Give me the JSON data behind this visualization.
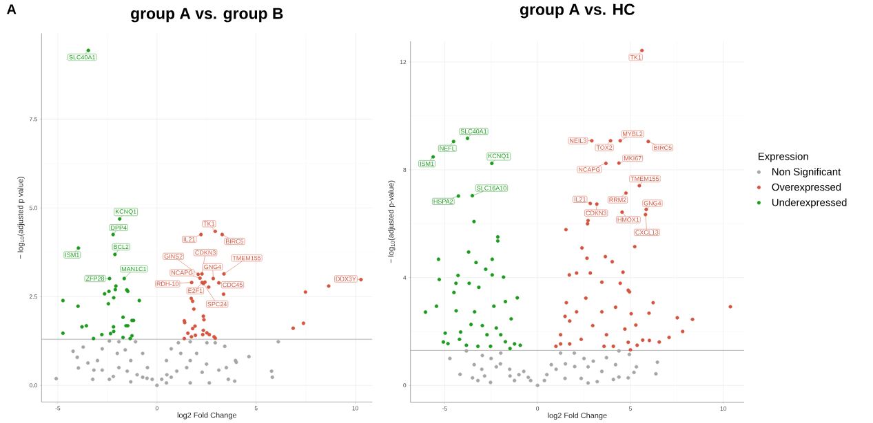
{
  "chart_data": [
    {
      "type": "scatter",
      "title": "group A vs. group B",
      "xlabel": "log2 Fold Change",
      "ylabel": "− log$_{10}$(adjusted p value)",
      "xlim": [
        -5.82,
        10.86
      ],
      "ylim": [
        -0.47,
        9.92
      ],
      "xticks": [
        -5,
        0,
        5,
        10
      ],
      "yticks": [
        {
          "value": 0,
          "label": "0.0"
        },
        2.5,
        {
          "value": 5,
          "label": "5.0"
        },
        7.5
      ],
      "grid": true,
      "legend": false,
      "marker": "circle",
      "ref_lines": [
        {
          "axis": "y",
          "value": 1.3,
          "color": "#a0a0a0"
        }
      ],
      "series": [
        {
          "color": "#a6a6a6",
          "x": [
            -5.08,
            -4.23,
            -4.02,
            -3.96,
            -3.72,
            -3.24,
            -3.18,
            -2.76,
            -2.4,
            -1.92,
            -1.08,
            -0.72,
            -0.48,
            -0.24,
            0,
            0.24,
            0.48,
            0.72,
            1.08,
            1.68,
            2.52,
            2.94,
            3.42,
            3.96,
            4.64,
            6.12,
            5.78,
            5.82,
            3.92,
            3.6,
            2.64,
            1.68,
            0.48,
            -1.32,
            -2.4,
            -2.76,
            -1.92,
            -1.32,
            1.68,
            2.28,
            3.12,
            -0.72,
            0.72,
            -3.48,
            -3.0,
            -1.5,
            -1.0,
            -0.5,
            0.5,
            1.0,
            1.5,
            2.0,
            -2.0,
            -1.6,
            1.2,
            2.5,
            -2.2,
            3.5,
            4.0
          ],
          "values": [
            0.19,
            0.96,
            0.79,
            0.49,
            1.08,
            0.17,
            0.43,
            1.03,
            1.25,
            1.23,
            1.23,
            0.9,
            0.5,
            0.17,
            0,
            0.17,
            0.7,
            1.03,
            1.2,
            1.23,
            1.2,
            1.2,
            1.1,
            0.7,
            0.81,
            1.23,
            0.4,
            0.23,
            0.12,
            0.17,
            0.07,
            0.07,
            0.07,
            0.1,
            0.17,
            0.43,
            0.5,
            0.7,
            0.7,
            0.37,
            0.43,
            0.23,
            0.23,
            0.63,
            0.7,
            0.4,
            0.3,
            0.2,
            0.3,
            0.4,
            0.5,
            0.9,
            0.9,
            1.0,
            0.9,
            0.6,
            0.25,
            0.5,
            0.65
          ]
        },
        {
          "color": "#d4553f",
          "x": [
            2.94,
            2.22,
            3.29,
            2.08,
            2.27,
            2.17,
            2.84,
            3.38,
            3.12,
            1.75,
            2.28,
            2.34,
            10.29,
            8.66,
            7.49,
            7.39,
            6.87,
            3.36,
            2.61,
            2.42,
            1.8,
            1.73,
            1.86,
            2.34,
            2.37,
            1.38,
            1.4,
            1.92,
            1.8,
            1.56,
            1.74,
            1.94,
            2.34,
            2.52,
            2.64,
            2.88,
            1.38,
            2.31,
            2.94
          ],
          "values": [
            4.34,
            4.25,
            4.25,
            3.13,
            3.14,
            3.02,
            3.01,
            3.14,
            2.89,
            2.9,
            2.9,
            2.87,
            2.98,
            2.8,
            2.63,
            1.75,
            1.61,
            2.57,
            2.77,
            2.91,
            2.37,
            2.45,
            2.15,
            1.95,
            1.85,
            1.82,
            1.77,
            1.67,
            1.6,
            1.47,
            1.37,
            1.41,
            1.55,
            1.48,
            1.43,
            1.37,
            1.32,
            1.43,
            1.33
          ]
        },
        {
          "color": "#1e9a1e",
          "x": [
            -3.46,
            -1.88,
            -2.21,
            -2.12,
            -3.96,
            -1.65,
            -2.39,
            -4.74,
            -4.74,
            -3.98,
            -3.78,
            -3.56,
            -3.2,
            -2.78,
            -2.64,
            -2.45,
            -2.42,
            -2.18,
            -2.1,
            -2.07,
            -1.52,
            -1.47,
            -0.89,
            -1.71,
            -1.26,
            -1.18,
            -2.19,
            -1.56,
            -1.47,
            -2.34,
            -2.18,
            -1.71,
            -1.26,
            -1.35
          ],
          "values": [
            9.44,
            4.69,
            4.25,
            3.69,
            3.87,
            3.01,
            3.01,
            2.39,
            1.47,
            2.23,
            1.65,
            1.68,
            1.32,
            1.43,
            2.58,
            2.3,
            2.65,
            2.47,
            2.7,
            2.8,
            2.69,
            2.65,
            2.39,
            1.92,
            1.83,
            1.83,
            1.65,
            1.68,
            1.68,
            1.46,
            1.52,
            1.35,
            1.4,
            1.32
          ]
        }
      ],
      "annotations": [
        "A",
        {
          "text": "SLC40A1",
          "x": -3.46,
          "y": 9.44
        },
        {
          "text": "KCNQ1",
          "x": -1.88,
          "y": 4.69
        },
        {
          "text": "DPP4",
          "x": -2.21,
          "y": 4.25
        },
        {
          "text": "BCL2",
          "x": -2.12,
          "y": 3.69
        },
        {
          "text": "ISM1",
          "x": -3.96,
          "y": 3.87
        },
        {
          "text": "MAN1C1",
          "x": -1.65,
          "y": 3.01
        },
        {
          "text": "ZFP28",
          "x": -2.39,
          "y": 3.01
        },
        {
          "text": "TK1",
          "x": 2.94,
          "y": 4.34
        },
        {
          "text": "IL21",
          "x": 2.22,
          "y": 4.25
        },
        {
          "text": "BIRC5",
          "x": 3.29,
          "y": 4.25
        },
        {
          "text": "GINS2",
          "x": 2.08,
          "y": 3.13
        },
        {
          "text": "CDKN3",
          "x": 2.27,
          "y": 3.14
        },
        {
          "text": "NCAPG",
          "x": 2.17,
          "y": 3.02
        },
        {
          "text": "GNG4",
          "x": 2.84,
          "y": 3.01
        },
        {
          "text": "TMEM155",
          "x": 3.38,
          "y": 3.14
        },
        {
          "text": "CDC45",
          "x": 3.12,
          "y": 2.89
        },
        {
          "text": "RDH-10",
          "x": 1.75,
          "y": 2.9
        },
        {
          "text": "E2F1",
          "x": 2.28,
          "y": 2.9
        },
        {
          "text": "SPC24",
          "x": 2.34,
          "y": 2.87
        },
        {
          "text": "DDX3Y",
          "x": 10.29,
          "y": 2.98
        }
      ]
    },
    {
      "type": "scatter",
      "title": "group A vs. HC",
      "xlabel": "log2 Fold Change",
      "ylabel": "− log$_{10}$(adjusted p-value)",
      "xlim": [
        -6.84,
        11.12
      ],
      "ylim": [
        -0.63,
        12.77
      ],
      "xticks": [
        -5,
        0,
        5,
        10
      ],
      "yticks": [
        0,
        4,
        8,
        12
      ],
      "grid": true,
      "legend": "right",
      "legend_title": "Expression",
      "marker": "circle",
      "ref_lines": [
        {
          "axis": "y",
          "value": 1.3,
          "color": "#a0a0a0"
        }
      ],
      "series": [
        {
          "name": "Non Significant",
          "color": "#a6a6a6",
          "x": [
            -4.72,
            -4.17,
            -3.5,
            -2.53,
            -3.83,
            -3.41,
            -2.97,
            -2.22,
            -1.48,
            -0.74,
            -0.37,
            0,
            0.37,
            0.74,
            1.24,
            1.98,
            2.72,
            2.72,
            3.21,
            3.46,
            4.08,
            4.38,
            4.88,
            5.19,
            5.32,
            4.94,
            4.38,
            6.45,
            6.37,
            3.71,
            4.2,
            1.48,
            2.35,
            -1.24,
            -1.98,
            -2.85,
            -3.21,
            -1.5,
            -1.0,
            -0.5,
            0.5,
            1.0,
            1.5,
            2.0,
            -2.0,
            -2.5,
            2.5,
            3.0,
            -3.0
          ],
          "values": [
            1.0,
            0.41,
            0.28,
            0.11,
            1.28,
            0.77,
            1.11,
            0.69,
            0.35,
            0.52,
            0.18,
            0,
            0.18,
            0.77,
            1.2,
            1.2,
            0.69,
            0.09,
            0.14,
            0.52,
            0.22,
            0.31,
            0.28,
            0.48,
            0.69,
            1.15,
            1.28,
            0.86,
            0.43,
            1.03,
            0.77,
            0.26,
            0.26,
            0.18,
            1.2,
            0.35,
            0.18,
            0.6,
            0.4,
            0.3,
            0.4,
            0.6,
            0.8,
            0.7,
            0.8,
            1.0,
            1.0,
            0.9,
            0.6
          ]
        },
        {
          "name": "Overexpressed",
          "color": "#d4553f",
          "x": [
            5.62,
            2.92,
            3.93,
            4.45,
            5.96,
            4.38,
            3.68,
            5.48,
            4.76,
            2.84,
            3.19,
            5.85,
            4.55,
            5.81,
            2.72,
            2.69,
            1.53,
            5.23,
            2.39,
            3.65,
            2.66,
            4.02,
            4.6,
            2.84,
            2.1,
            1.71,
            4.45,
            4.95,
            4.88,
            6.22,
            10.38,
            6.0,
            5.04,
            7.52,
            8.34,
            5.29,
            7.81,
            7.08,
            6.55,
            6.02,
            5.66,
            4.88,
            5.36,
            5.0,
            1.55,
            1.73,
            1.24,
            0.99,
            1.73,
            2.35,
            2.97,
            3.46,
            4.2,
            3.71,
            4.08,
            2.6,
            3.46,
            2.1,
            1.48,
            1.24,
            3.58,
            4.7
          ],
          "values": [
            12.43,
            9.08,
            9.08,
            9.08,
            9.05,
            8.25,
            8.24,
            7.41,
            7.14,
            6.75,
            6.73,
            6.53,
            6.43,
            6.34,
            6.12,
            6.0,
            5.78,
            5.15,
            5.1,
            4.78,
            4.72,
            4.59,
            4.2,
            4.17,
            4.17,
            4.1,
            3.79,
            3.47,
            3.53,
            3.07,
            2.92,
            2.68,
            2.66,
            2.51,
            2.45,
            2.24,
            2.0,
            1.78,
            1.61,
            1.67,
            1.68,
            1.6,
            1.49,
            1.32,
            3.07,
            2.39,
            1.88,
            1.45,
            1.54,
            1.71,
            2.22,
            2.73,
            2.9,
            1.88,
            1.45,
            3.24,
            3.83,
            2.73,
            2.56,
            1.54,
            1.45,
            2.09
          ]
        },
        {
          "name": "Underexpressed",
          "color": "#1e9a1e",
          "x": [
            -3.77,
            -4.52,
            -5.62,
            -2.46,
            -3.51,
            -4.26,
            -3.42,
            -2.14,
            -2.14,
            -3.71,
            -5.33,
            -2.44,
            -3.31,
            -2.79,
            -2.44,
            -4.28,
            -5.29,
            -4.39,
            -3.68,
            -1.83,
            -3.16,
            -4.5,
            -1.09,
            -5.44,
            -6.03,
            -4.38,
            -3.39,
            -2.35,
            -1.73,
            -1.42,
            -4.97,
            -5.07,
            -4.82,
            -4.14,
            -4.2,
            -3.83,
            -3.21,
            -2.72,
            -2.22,
            -1.73,
            -1.24,
            -0.93,
            -3.58,
            -2.97,
            -1.98,
            -2.53,
            -1.48
          ],
          "values": [
            9.17,
            9.05,
            8.48,
            8.24,
            7.04,
            7.03,
            6.08,
            5.51,
            5.36,
            4.95,
            4.68,
            4.68,
            4.56,
            4.31,
            4.1,
            4.08,
            3.93,
            3.79,
            3.79,
            4.02,
            3.64,
            3.45,
            3.25,
            2.94,
            2.72,
            2.77,
            2.73,
            2.94,
            3.11,
            2.47,
            1.94,
            1.61,
            1.55,
            1.98,
            1.71,
            1.49,
            1.45,
            1.88,
            2.13,
            1.62,
            1.54,
            1.49,
            2.26,
            2.22,
            1.88,
            1.45,
            1.37
          ]
        }
      ],
      "annotations": [
        {
          "text": "SLC40A1",
          "x": -3.77,
          "y": 9.17
        },
        {
          "text": "NEFL",
          "x": -4.52,
          "y": 9.05
        },
        {
          "text": "ISM1",
          "x": -5.62,
          "y": 8.48
        },
        {
          "text": "KCNQ1",
          "x": -2.46,
          "y": 8.24
        },
        {
          "text": "SLC16A10",
          "x": -3.51,
          "y": 7.04
        },
        {
          "text": "HSPA2",
          "x": -4.26,
          "y": 7.03
        },
        {
          "text": "TK1",
          "x": 5.62,
          "y": 12.43
        },
        {
          "text": "NEIL3",
          "x": 2.92,
          "y": 9.08
        },
        {
          "text": "TOX2",
          "x": 3.93,
          "y": 9.08
        },
        {
          "text": "MYBL2",
          "x": 4.45,
          "y": 9.08
        },
        {
          "text": "BIRC5",
          "x": 5.96,
          "y": 9.05
        },
        {
          "text": "MKI67",
          "x": 4.38,
          "y": 8.25
        },
        {
          "text": "NCAPG",
          "x": 3.68,
          "y": 8.24
        },
        {
          "text": "TMEM155",
          "x": 5.48,
          "y": 7.41
        },
        {
          "text": "RRM2",
          "x": 4.76,
          "y": 7.14
        },
        {
          "text": "IL21",
          "x": 2.84,
          "y": 6.75
        },
        {
          "text": "CDKN3",
          "x": 3.19,
          "y": 6.73
        },
        {
          "text": "GNG4",
          "x": 5.85,
          "y": 6.53
        },
        {
          "text": "HMOX1",
          "x": 4.55,
          "y": 6.43
        },
        {
          "text": "CXCL13",
          "x": 5.81,
          "y": 6.34
        }
      ]
    }
  ]
}
